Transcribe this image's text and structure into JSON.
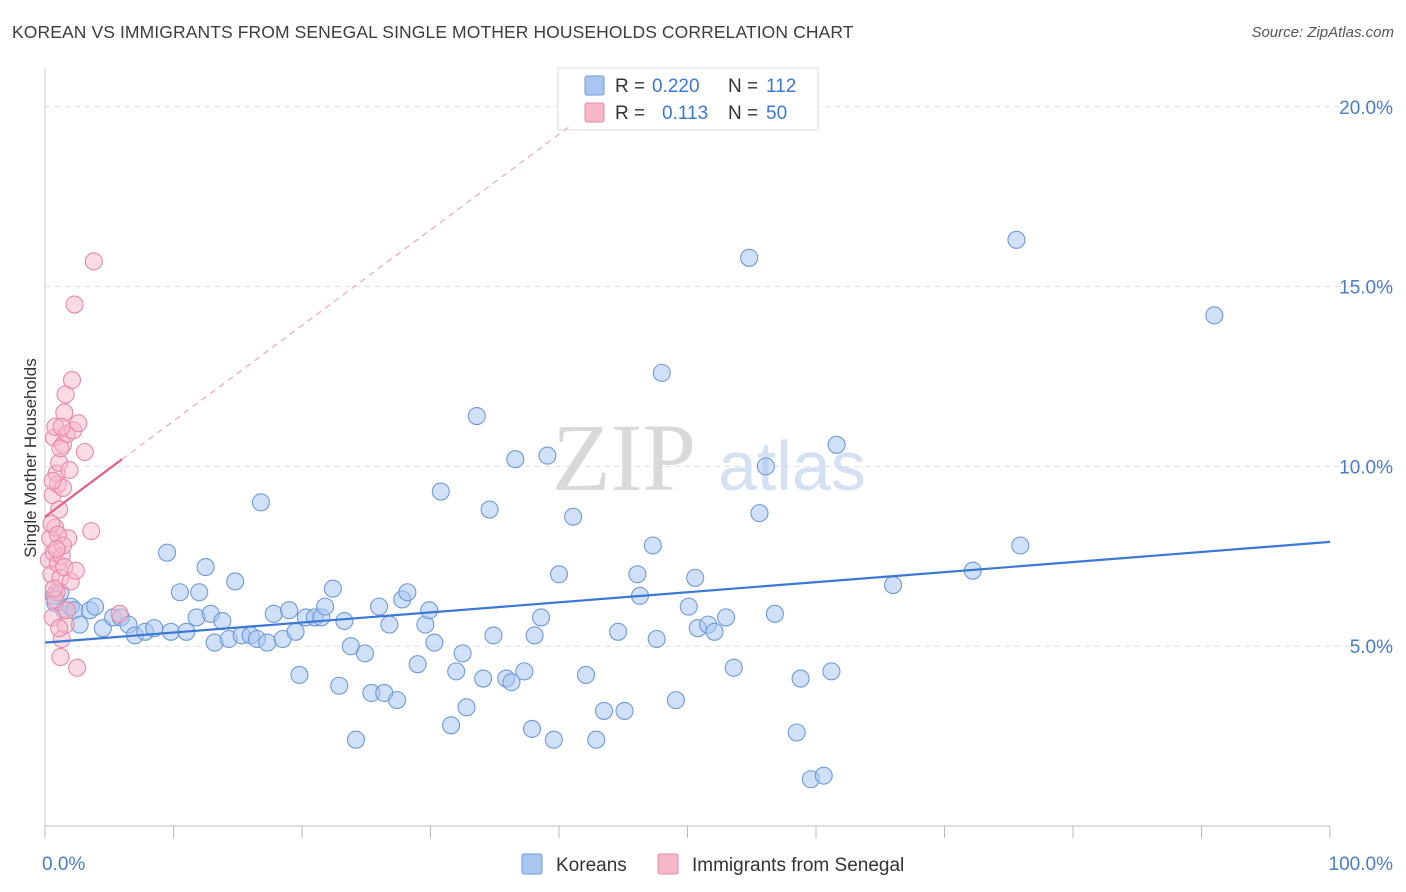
{
  "title": "KOREAN VS IMMIGRANTS FROM SENEGAL SINGLE MOTHER HOUSEHOLDS CORRELATION CHART",
  "source": "Source: ZipAtlas.com",
  "watermark": {
    "zip": "ZIP",
    "atlas": "atlas"
  },
  "colors": {
    "koreans_fill": "#a9c6f0",
    "koreans_stroke": "#6f9ad8",
    "koreans_line": "#3b78d4",
    "senegal_fill": "#f6b7c9",
    "senegal_stroke": "#e88aa7",
    "senegal_line": "#e0628a",
    "tick_text": "#4a7cc8",
    "grid": "#dddddd"
  },
  "legend_top": [
    {
      "r_label": "R =",
      "r_value": "0.220",
      "n_label": "N =",
      "n_value": "112"
    },
    {
      "r_label": "R =",
      "r_value": "0.113",
      "n_label": "N =",
      "n_value": "50"
    }
  ],
  "chart_data": {
    "type": "scatter",
    "xlabel": "",
    "ylabel": "Single Mother Households",
    "xlim": [
      0,
      100
    ],
    "ylim": [
      0,
      20.8
    ],
    "x_tick_labels": [
      {
        "x": 0,
        "label": "0.0%"
      },
      {
        "x": 100,
        "label": "100.0%"
      }
    ],
    "y_ticks": [
      {
        "y": 5,
        "label": "5.0%"
      },
      {
        "y": 10,
        "label": "10.0%"
      },
      {
        "y": 15,
        "label": "15.0%"
      },
      {
        "y": 20,
        "label": "20.0%"
      }
    ],
    "grid": true,
    "legend_placement": "bottom-center",
    "series": [
      {
        "name": "Koreans",
        "trend": {
          "x": [
            0,
            100
          ],
          "y": [
            5.1,
            7.9
          ]
        },
        "points": [
          [
            0.7,
            6.4
          ],
          [
            0.8,
            6.2
          ],
          [
            1.2,
            6.5
          ],
          [
            1.5,
            6.0
          ],
          [
            2.0,
            6.1
          ],
          [
            2.3,
            6.0
          ],
          [
            2.7,
            5.6
          ],
          [
            3.5,
            6.0
          ],
          [
            3.9,
            6.1
          ],
          [
            4.5,
            5.5
          ],
          [
            5.3,
            5.8
          ],
          [
            5.9,
            5.8
          ],
          [
            6.5,
            5.6
          ],
          [
            7.0,
            5.3
          ],
          [
            7.8,
            5.4
          ],
          [
            8.5,
            5.5
          ],
          [
            9.5,
            7.6
          ],
          [
            9.8,
            5.4
          ],
          [
            10.5,
            6.5
          ],
          [
            11.0,
            5.4
          ],
          [
            11.8,
            5.8
          ],
          [
            12.0,
            6.5
          ],
          [
            12.5,
            7.2
          ],
          [
            12.9,
            5.9
          ],
          [
            13.2,
            5.1
          ],
          [
            13.8,
            5.7
          ],
          [
            14.3,
            5.2
          ],
          [
            14.8,
            6.8
          ],
          [
            15.3,
            5.3
          ],
          [
            16.0,
            5.3
          ],
          [
            16.5,
            5.2
          ],
          [
            16.8,
            9.0
          ],
          [
            17.3,
            5.1
          ],
          [
            17.8,
            5.9
          ],
          [
            18.5,
            5.2
          ],
          [
            19.0,
            6.0
          ],
          [
            19.5,
            5.4
          ],
          [
            19.8,
            4.2
          ],
          [
            20.3,
            5.8
          ],
          [
            21.0,
            5.8
          ],
          [
            21.5,
            5.8
          ],
          [
            21.8,
            6.1
          ],
          [
            22.4,
            6.6
          ],
          [
            22.9,
            3.9
          ],
          [
            23.3,
            5.7
          ],
          [
            23.8,
            5.0
          ],
          [
            24.2,
            2.4
          ],
          [
            24.9,
            4.8
          ],
          [
            25.4,
            3.7
          ],
          [
            26.0,
            6.1
          ],
          [
            26.4,
            3.7
          ],
          [
            26.8,
            5.6
          ],
          [
            27.4,
            3.5
          ],
          [
            27.8,
            6.3
          ],
          [
            28.2,
            6.5
          ],
          [
            29.0,
            4.5
          ],
          [
            29.6,
            5.6
          ],
          [
            29.9,
            6.0
          ],
          [
            30.3,
            5.1
          ],
          [
            30.8,
            9.3
          ],
          [
            31.6,
            2.8
          ],
          [
            32.0,
            4.3
          ],
          [
            32.5,
            4.8
          ],
          [
            32.8,
            3.3
          ],
          [
            33.6,
            11.4
          ],
          [
            34.1,
            4.1
          ],
          [
            34.6,
            8.8
          ],
          [
            34.9,
            5.3
          ],
          [
            35.9,
            4.1
          ],
          [
            36.3,
            4.0
          ],
          [
            36.6,
            10.2
          ],
          [
            37.3,
            4.3
          ],
          [
            37.9,
            2.7
          ],
          [
            38.1,
            5.3
          ],
          [
            39.1,
            10.3
          ],
          [
            39.6,
            2.4
          ],
          [
            40.0,
            7.0
          ],
          [
            41.1,
            8.6
          ],
          [
            42.1,
            4.2
          ],
          [
            42.9,
            2.4
          ],
          [
            43.5,
            3.2
          ],
          [
            45.1,
            3.2
          ],
          [
            46.1,
            7.0
          ],
          [
            46.3,
            6.4
          ],
          [
            47.3,
            7.8
          ],
          [
            47.6,
            5.2
          ],
          [
            48.0,
            12.6
          ],
          [
            49.1,
            3.5
          ],
          [
            50.1,
            6.1
          ],
          [
            50.6,
            6.9
          ],
          [
            50.8,
            5.5
          ],
          [
            51.6,
            5.6
          ],
          [
            52.1,
            5.4
          ],
          [
            53.0,
            5.8
          ],
          [
            53.6,
            4.4
          ],
          [
            54.8,
            15.8
          ],
          [
            55.6,
            8.7
          ],
          [
            56.1,
            10.0
          ],
          [
            56.8,
            5.9
          ],
          [
            58.5,
            2.6
          ],
          [
            58.8,
            4.1
          ],
          [
            59.6,
            1.3
          ],
          [
            60.6,
            1.4
          ],
          [
            61.2,
            4.3
          ],
          [
            61.6,
            10.6
          ],
          [
            66.0,
            6.7
          ],
          [
            72.2,
            7.1
          ],
          [
            75.6,
            16.3
          ],
          [
            75.9,
            7.8
          ],
          [
            91.0,
            14.2
          ],
          [
            38.6,
            5.8
          ],
          [
            44.6,
            5.4
          ]
        ]
      },
      {
        "name": "Immigrants from Senegal",
        "trend": {
          "x": [
            0,
            6
          ],
          "y": [
            8.6,
            10.2
          ]
        },
        "trend_ext": {
          "x": [
            6,
            41
          ],
          "y": [
            10.2,
            19.5
          ]
        },
        "points": [
          [
            0.3,
            7.4
          ],
          [
            0.4,
            8.0
          ],
          [
            0.5,
            7.0
          ],
          [
            0.6,
            9.2
          ],
          [
            0.6,
            5.8
          ],
          [
            0.7,
            7.6
          ],
          [
            0.7,
            10.8
          ],
          [
            0.8,
            11.1
          ],
          [
            0.8,
            8.3
          ],
          [
            0.9,
            6.5
          ],
          [
            0.9,
            9.8
          ],
          [
            1.0,
            7.3
          ],
          [
            1.0,
            9.5
          ],
          [
            1.1,
            8.8
          ],
          [
            1.1,
            10.1
          ],
          [
            1.2,
            4.7
          ],
          [
            1.2,
            6.9
          ],
          [
            1.3,
            7.5
          ],
          [
            1.3,
            5.2
          ],
          [
            1.4,
            10.6
          ],
          [
            1.4,
            9.4
          ],
          [
            1.5,
            11.5
          ],
          [
            1.5,
            7.2
          ],
          [
            1.6,
            12.0
          ],
          [
            1.6,
            5.6
          ],
          [
            1.7,
            10.9
          ],
          [
            1.8,
            8.0
          ],
          [
            1.9,
            9.9
          ],
          [
            2.0,
            6.8
          ],
          [
            2.1,
            12.4
          ],
          [
            2.2,
            11.0
          ],
          [
            2.3,
            14.5
          ],
          [
            2.4,
            7.1
          ],
          [
            2.5,
            4.4
          ],
          [
            2.6,
            11.2
          ],
          [
            3.1,
            10.4
          ],
          [
            3.6,
            8.2
          ],
          [
            3.8,
            15.7
          ],
          [
            5.8,
            5.9
          ],
          [
            0.5,
            8.4
          ],
          [
            0.8,
            6.3
          ],
          [
            1.0,
            8.1
          ],
          [
            1.2,
            10.5
          ],
          [
            1.4,
            7.8
          ],
          [
            0.6,
            9.6
          ],
          [
            1.7,
            6.0
          ],
          [
            0.9,
            7.7
          ],
          [
            1.1,
            5.5
          ],
          [
            1.3,
            11.1
          ],
          [
            0.7,
            6.6
          ]
        ]
      }
    ]
  }
}
